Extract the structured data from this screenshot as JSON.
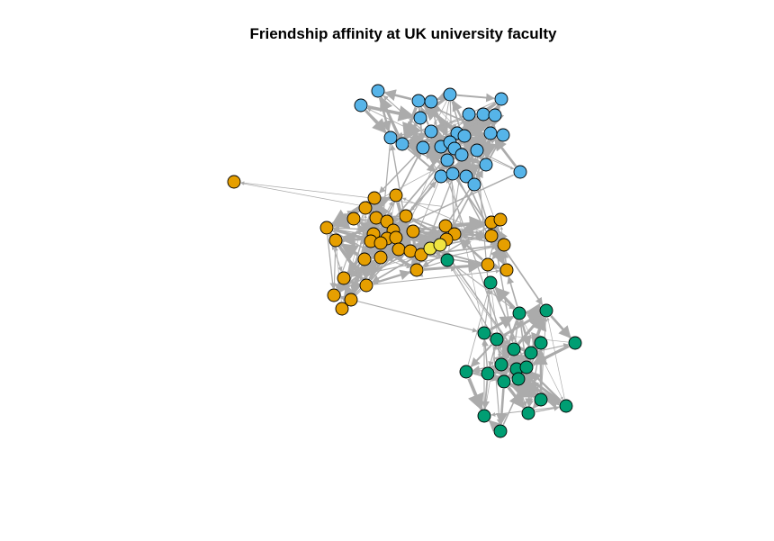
{
  "title": "Friendship affinity at UK university faculty",
  "colors": {
    "group_1": "#56B4E9",
    "group_2": "#E69F00",
    "group_3": "#009E73",
    "group_4": "#F0E442",
    "edge": "#ABABAB",
    "node_border": "#000000"
  }
}
